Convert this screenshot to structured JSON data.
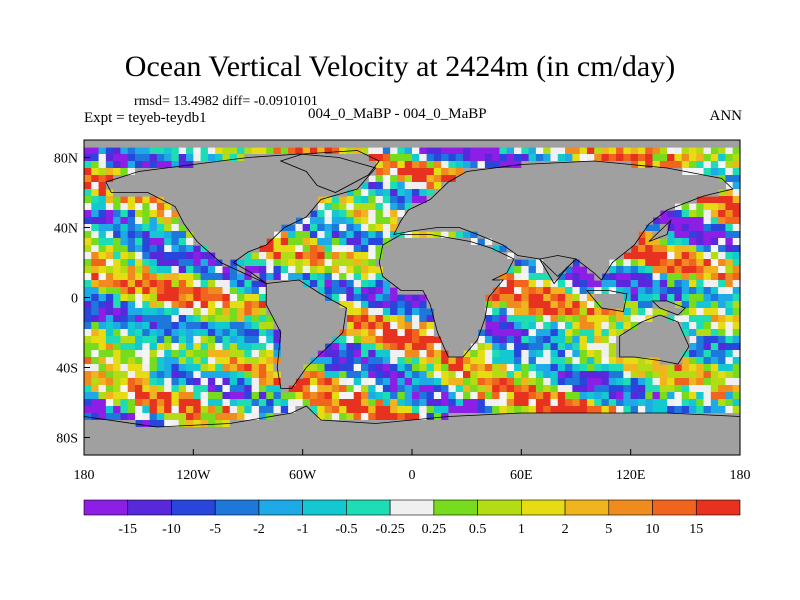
{
  "chart_data": {
    "type": "heatmap",
    "title": "Ocean Vertical Velocity at 2424m (in cm/day)",
    "stats_label": "rmsd= 13.4982 diff= -0.0910101",
    "experiment_label": "Expt = teyeb-teydb1",
    "center_label": "004_0_MaBP - 004_0_MaBP",
    "season_label": "ANN",
    "xlim": [
      -180,
      180
    ],
    "ylim": [
      -90,
      90
    ],
    "x_ticks": [
      {
        "value": -180,
        "label": "180"
      },
      {
        "value": -120,
        "label": "120W"
      },
      {
        "value": -60,
        "label": "60W"
      },
      {
        "value": 0,
        "label": "0"
      },
      {
        "value": 60,
        "label": "60E"
      },
      {
        "value": 120,
        "label": "120E"
      },
      {
        "value": 180,
        "label": "180"
      }
    ],
    "y_ticks": [
      {
        "value": 80,
        "label": "80N"
      },
      {
        "value": 40,
        "label": "40N"
      },
      {
        "value": 0,
        "label": "0"
      },
      {
        "value": -40,
        "label": "40S"
      },
      {
        "value": -80,
        "label": "80S"
      }
    ],
    "colorbar": {
      "levels": [
        "-15",
        "-10",
        "-5",
        "-2",
        "-1",
        "-0.5",
        "-0.25",
        "0.25",
        "0.5",
        "1",
        "2",
        "5",
        "10",
        "15"
      ],
      "colors": [
        "#8c1ee6",
        "#5a28dc",
        "#2846dc",
        "#1e78dc",
        "#1eaae6",
        "#14c8d2",
        "#1edcb4",
        "#f0f0f0",
        "#78dc1e",
        "#b4dc14",
        "#e6dc14",
        "#f0b41e",
        "#f08c1e",
        "#f0641e",
        "#e6321e"
      ]
    },
    "land_color": "#a0a0a0",
    "missing_color": "#f5f5f5"
  }
}
